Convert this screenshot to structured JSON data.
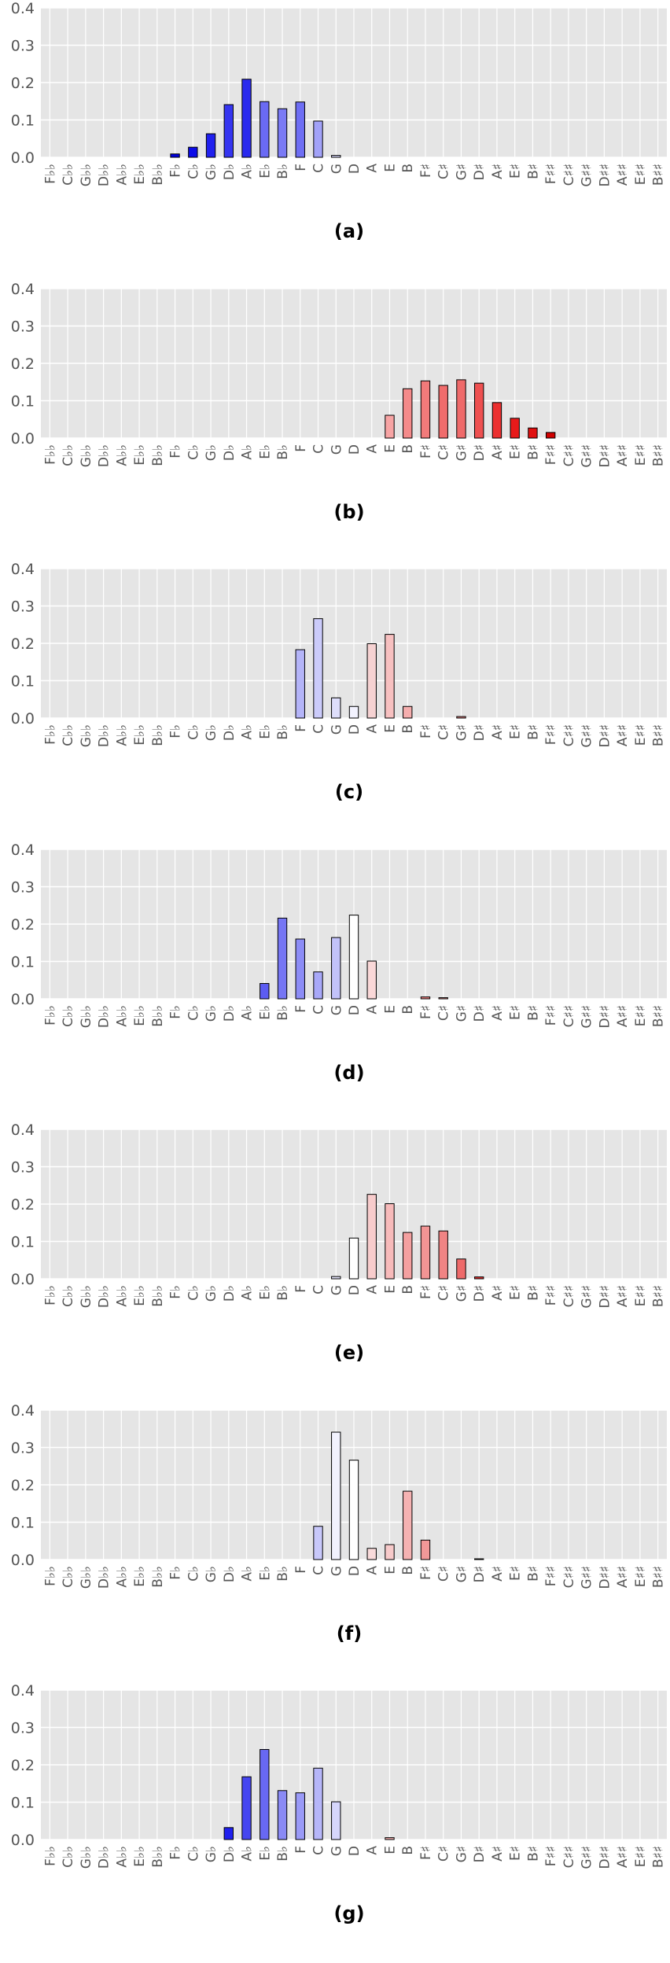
{
  "chart_data": [
    {
      "type": "bar",
      "panel_label": "(a)",
      "ylim": [
        0,
        0.4
      ],
      "yticks": [
        "0.0",
        "0.1",
        "0.2",
        "0.3",
        "0.4"
      ],
      "grid": true,
      "categories": [
        "F♭♭",
        "C♭♭",
        "G♭♭",
        "D♭♭",
        "A♭♭",
        "E♭♭",
        "B♭♭",
        "F♭",
        "C♭",
        "G♭",
        "D♭",
        "A♭",
        "E♭",
        "B♭",
        "F",
        "C",
        "G",
        "D",
        "A",
        "E",
        "B",
        "F♯",
        "C♯",
        "G♯",
        "D♯",
        "A♯",
        "E♯",
        "B♯",
        "F♯♯",
        "C♯♯",
        "G♯♯",
        "D♯♯",
        "A♯♯",
        "E♯♯",
        "B♯♯"
      ],
      "values": [
        0,
        0,
        0,
        0,
        0,
        0,
        0,
        0.009,
        0.027,
        0.063,
        0.141,
        0.209,
        0.149,
        0.13,
        0.148,
        0.097,
        0.005,
        0,
        0,
        0,
        0,
        0,
        0,
        0,
        0,
        0,
        0,
        0,
        0,
        0,
        0,
        0,
        0,
        0,
        0
      ],
      "colors": [
        "#ffffff",
        "#ffffff",
        "#ffffff",
        "#ffffff",
        "#ffffff",
        "#ffffff",
        "#ffffff",
        "#0000dd",
        "#0b0be8",
        "#2020ee",
        "#3535f0",
        "#2a2aee",
        "#6a6af4",
        "#7a7af5",
        "#6e6ef4",
        "#a2a2f8",
        "#d8d8fd",
        "#ffffff",
        "#ffffff",
        "#ffffff",
        "#ffffff",
        "#ffffff",
        "#ffffff",
        "#ffffff",
        "#ffffff",
        "#ffffff",
        "#ffffff",
        "#ffffff",
        "#ffffff",
        "#ffffff",
        "#ffffff",
        "#ffffff",
        "#ffffff",
        "#ffffff",
        "#ffffff"
      ]
    },
    {
      "type": "bar",
      "panel_label": "(b)",
      "ylim": [
        0,
        0.4
      ],
      "yticks": [
        "0.0",
        "0.1",
        "0.2",
        "0.3",
        "0.4"
      ],
      "grid": true,
      "categories": [
        "F♭♭",
        "C♭♭",
        "G♭♭",
        "D♭♭",
        "A♭♭",
        "E♭♭",
        "B♭♭",
        "F♭",
        "C♭",
        "G♭",
        "D♭",
        "A♭",
        "E♭",
        "B♭",
        "F",
        "C",
        "G",
        "D",
        "A",
        "E",
        "B",
        "F♯",
        "C♯",
        "G♯",
        "D♯",
        "A♯",
        "E♯",
        "B♯",
        "F♯♯",
        "C♯♯",
        "G♯♯",
        "D♯♯",
        "A♯♯",
        "E♯♯",
        "B♯♯"
      ],
      "values": [
        0,
        0,
        0,
        0,
        0,
        0,
        0,
        0,
        0,
        0,
        0,
        0,
        0,
        0,
        0,
        0,
        0,
        0,
        0,
        0.061,
        0.132,
        0.153,
        0.141,
        0.156,
        0.147,
        0.095,
        0.053,
        0.027,
        0.015,
        0,
        0,
        0,
        0,
        0,
        0
      ],
      "colors": [
        "#ffffff",
        "#ffffff",
        "#ffffff",
        "#ffffff",
        "#ffffff",
        "#ffffff",
        "#ffffff",
        "#ffffff",
        "#ffffff",
        "#ffffff",
        "#ffffff",
        "#ffffff",
        "#ffffff",
        "#ffffff",
        "#ffffff",
        "#ffffff",
        "#ffffff",
        "#ffffff",
        "#ffffff",
        "#f7a4a4",
        "#f48a8a",
        "#f27a7a",
        "#f06c6c",
        "#ef6a6a",
        "#ee5050",
        "#ec3030",
        "#e81a1a",
        "#e01010",
        "#d00000",
        "#ffffff",
        "#ffffff",
        "#ffffff",
        "#ffffff",
        "#ffffff",
        "#ffffff"
      ]
    },
    {
      "type": "bar",
      "panel_label": "(c)",
      "ylim": [
        0,
        0.4
      ],
      "yticks": [
        "0.0",
        "0.1",
        "0.2",
        "0.3",
        "0.4"
      ],
      "grid": true,
      "categories": [
        "F♭♭",
        "C♭♭",
        "G♭♭",
        "D♭♭",
        "A♭♭",
        "E♭♭",
        "B♭♭",
        "F♭",
        "C♭",
        "G♭",
        "D♭",
        "A♭",
        "E♭",
        "B♭",
        "F",
        "C",
        "G",
        "D",
        "A",
        "E",
        "B",
        "F♯",
        "C♯",
        "G♯",
        "D♯",
        "A♯",
        "E♯",
        "B♯",
        "F♯♯",
        "C♯♯",
        "G♯♯",
        "D♯♯",
        "A♯♯",
        "E♯♯",
        "B♯♯"
      ],
      "values": [
        0,
        0,
        0,
        0,
        0,
        0,
        0,
        0,
        0,
        0,
        0,
        0,
        0,
        0,
        0.183,
        0.266,
        0.054,
        0.031,
        0.199,
        0.224,
        0.031,
        0,
        0,
        0.004,
        0,
        0,
        0,
        0,
        0,
        0,
        0,
        0,
        0,
        0,
        0
      ],
      "colors": [
        "#ffffff",
        "#ffffff",
        "#ffffff",
        "#ffffff",
        "#ffffff",
        "#ffffff",
        "#ffffff",
        "#ffffff",
        "#ffffff",
        "#ffffff",
        "#ffffff",
        "#ffffff",
        "#ffffff",
        "#ffffff",
        "#b4b4f8",
        "#cbcbfa",
        "#dedefb",
        "#f2f2fe",
        "#f6d2d2",
        "#f7c0c0",
        "#f5aeae",
        "#ffffff",
        "#ffffff",
        "#f08a8a",
        "#ffffff",
        "#ffffff",
        "#ffffff",
        "#ffffff",
        "#ffffff",
        "#ffffff",
        "#ffffff",
        "#ffffff",
        "#ffffff",
        "#ffffff",
        "#ffffff"
      ]
    },
    {
      "type": "bar",
      "panel_label": "(d)",
      "ylim": [
        0,
        0.4
      ],
      "yticks": [
        "0.0",
        "0.1",
        "0.2",
        "0.3",
        "0.4"
      ],
      "grid": true,
      "categories": [
        "F♭♭",
        "C♭♭",
        "G♭♭",
        "D♭♭",
        "A♭♭",
        "E♭♭",
        "B♭♭",
        "F♭",
        "C♭",
        "G♭",
        "D♭",
        "A♭",
        "E♭",
        "B♭",
        "F",
        "C",
        "G",
        "D",
        "A",
        "E",
        "B",
        "F♯",
        "C♯",
        "G♯",
        "D♯",
        "A♯",
        "E♯",
        "B♯",
        "F♯♯",
        "C♯♯",
        "G♯♯",
        "D♯♯",
        "A♯♯",
        "E♯♯",
        "B♯♯"
      ],
      "values": [
        0,
        0,
        0,
        0,
        0,
        0,
        0,
        0,
        0,
        0,
        0,
        0,
        0.041,
        0.216,
        0.16,
        0.072,
        0.164,
        0.224,
        0.101,
        0,
        0,
        0.005,
        0.003,
        0,
        0,
        0,
        0,
        0,
        0,
        0,
        0,
        0,
        0,
        0,
        0
      ],
      "colors": [
        "#ffffff",
        "#ffffff",
        "#ffffff",
        "#ffffff",
        "#ffffff",
        "#ffffff",
        "#ffffff",
        "#ffffff",
        "#ffffff",
        "#ffffff",
        "#ffffff",
        "#ffffff",
        "#5c5cf2",
        "#7676f4",
        "#8c8cf6",
        "#a8a8f8",
        "#c2c2fa",
        "#ffffff",
        "#fad8d8",
        "#ffffff",
        "#ffffff",
        "#f08080",
        "#f29090",
        "#ffffff",
        "#ffffff",
        "#ffffff",
        "#ffffff",
        "#ffffff",
        "#ffffff",
        "#ffffff",
        "#ffffff",
        "#ffffff",
        "#ffffff",
        "#ffffff",
        "#ffffff"
      ]
    },
    {
      "type": "bar",
      "panel_label": "(e)",
      "ylim": [
        0,
        0.4
      ],
      "yticks": [
        "0.0",
        "0.1",
        "0.2",
        "0.3",
        "0.4"
      ],
      "grid": true,
      "categories": [
        "F♭♭",
        "C♭♭",
        "G♭♭",
        "D♭♭",
        "A♭♭",
        "E♭♭",
        "B♭♭",
        "F♭",
        "C♭",
        "G♭",
        "D♭",
        "A♭",
        "E♭",
        "B♭",
        "F",
        "C",
        "G",
        "D",
        "A",
        "E",
        "B",
        "F♯",
        "C♯",
        "G♯",
        "D♯",
        "A♯",
        "E♯",
        "B♯",
        "F♯♯",
        "C♯♯",
        "G♯♯",
        "D♯♯",
        "A♯♯",
        "E♯♯",
        "B♯♯"
      ],
      "values": [
        0,
        0,
        0,
        0,
        0,
        0,
        0,
        0,
        0,
        0,
        0,
        0,
        0,
        0,
        0,
        0,
        0.006,
        0.109,
        0.226,
        0.201,
        0.124,
        0.141,
        0.128,
        0.053,
        0.005,
        0,
        0,
        0,
        0,
        0,
        0,
        0,
        0,
        0,
        0
      ],
      "colors": [
        "#ffffff",
        "#ffffff",
        "#ffffff",
        "#ffffff",
        "#ffffff",
        "#ffffff",
        "#ffffff",
        "#ffffff",
        "#ffffff",
        "#ffffff",
        "#ffffff",
        "#ffffff",
        "#ffffff",
        "#ffffff",
        "#ffffff",
        "#ffffff",
        "#e4e4fc",
        "#ffffff",
        "#f8cccc",
        "#f7baba",
        "#f4a0a0",
        "#f29494",
        "#f08484",
        "#ee6a6a",
        "#e83030",
        "#ffffff",
        "#ffffff",
        "#ffffff",
        "#ffffff",
        "#ffffff",
        "#ffffff",
        "#ffffff",
        "#ffffff",
        "#ffffff",
        "#ffffff"
      ]
    },
    {
      "type": "bar",
      "panel_label": "(f)",
      "ylim": [
        0,
        0.4
      ],
      "yticks": [
        "0.0",
        "0.1",
        "0.2",
        "0.3",
        "0.4"
      ],
      "grid": true,
      "categories": [
        "F♭♭",
        "C♭♭",
        "G♭♭",
        "D♭♭",
        "A♭♭",
        "E♭♭",
        "B♭♭",
        "F♭",
        "C♭",
        "G♭",
        "D♭",
        "A♭",
        "E♭",
        "B♭",
        "F",
        "C",
        "G",
        "D",
        "A",
        "E",
        "B",
        "F♯",
        "C♯",
        "G♯",
        "D♯",
        "A♯",
        "E♯",
        "B♯",
        "F♯♯",
        "C♯♯",
        "G♯♯",
        "D♯♯",
        "A♯♯",
        "E♯♯",
        "B♯♯"
      ],
      "values": [
        0,
        0,
        0,
        0,
        0,
        0,
        0,
        0,
        0,
        0,
        0,
        0,
        0,
        0,
        0,
        0.089,
        0.341,
        0.266,
        0.03,
        0.04,
        0.183,
        0.052,
        0,
        0,
        0.002,
        0,
        0,
        0,
        0,
        0,
        0,
        0,
        0,
        0,
        0
      ],
      "colors": [
        "#ffffff",
        "#ffffff",
        "#ffffff",
        "#ffffff",
        "#ffffff",
        "#ffffff",
        "#ffffff",
        "#ffffff",
        "#ffffff",
        "#ffffff",
        "#ffffff",
        "#ffffff",
        "#ffffff",
        "#ffffff",
        "#ffffff",
        "#c8c8fa",
        "#f2f2fe",
        "#ffffff",
        "#f8dada",
        "#f7caca",
        "#f5b2b2",
        "#f29898",
        "#ffffff",
        "#ffffff",
        "#ee8080",
        "#ffffff",
        "#ffffff",
        "#ffffff",
        "#ffffff",
        "#ffffff",
        "#ffffff",
        "#ffffff",
        "#ffffff",
        "#ffffff",
        "#ffffff"
      ]
    },
    {
      "type": "bar",
      "panel_label": "(g)",
      "ylim": [
        0,
        0.4
      ],
      "yticks": [
        "0.0",
        "0.1",
        "0.2",
        "0.3",
        "0.4"
      ],
      "grid": true,
      "categories": [
        "F♭♭",
        "C♭♭",
        "G♭♭",
        "D♭♭",
        "A♭♭",
        "E♭♭",
        "B♭♭",
        "F♭",
        "C♭",
        "G♭",
        "D♭",
        "A♭",
        "E♭",
        "B♭",
        "F",
        "C",
        "G",
        "D",
        "A",
        "E",
        "B",
        "F♯",
        "C♯",
        "G♯",
        "D♯",
        "A♯",
        "E♯",
        "B♯",
        "F♯♯",
        "C♯♯",
        "G♯♯",
        "D♯♯",
        "A♯♯",
        "E♯♯",
        "B♯♯"
      ],
      "values": [
        0,
        0,
        0,
        0,
        0,
        0,
        0,
        0,
        0,
        0,
        0.032,
        0.168,
        0.241,
        0.131,
        0.125,
        0.191,
        0.101,
        0,
        0,
        0.005,
        0,
        0,
        0,
        0,
        0,
        0,
        0,
        0,
        0,
        0,
        0,
        0,
        0,
        0,
        0
      ],
      "colors": [
        "#ffffff",
        "#ffffff",
        "#ffffff",
        "#ffffff",
        "#ffffff",
        "#ffffff",
        "#ffffff",
        "#ffffff",
        "#ffffff",
        "#ffffff",
        "#2020ee",
        "#4646f0",
        "#6868f3",
        "#8a8af5",
        "#9a9af7",
        "#b6b6f9",
        "#d6d6fc",
        "#ffffff",
        "#ffffff",
        "#f4b0b0",
        "#ffffff",
        "#ffffff",
        "#ffffff",
        "#ffffff",
        "#ffffff",
        "#ffffff",
        "#ffffff",
        "#ffffff",
        "#ffffff",
        "#ffffff",
        "#ffffff",
        "#ffffff",
        "#ffffff",
        "#ffffff",
        "#ffffff"
      ]
    }
  ],
  "style": {
    "plot_background": "#e5e5e5",
    "grid_color": "#ffffff",
    "bar_edge": "#000000"
  }
}
